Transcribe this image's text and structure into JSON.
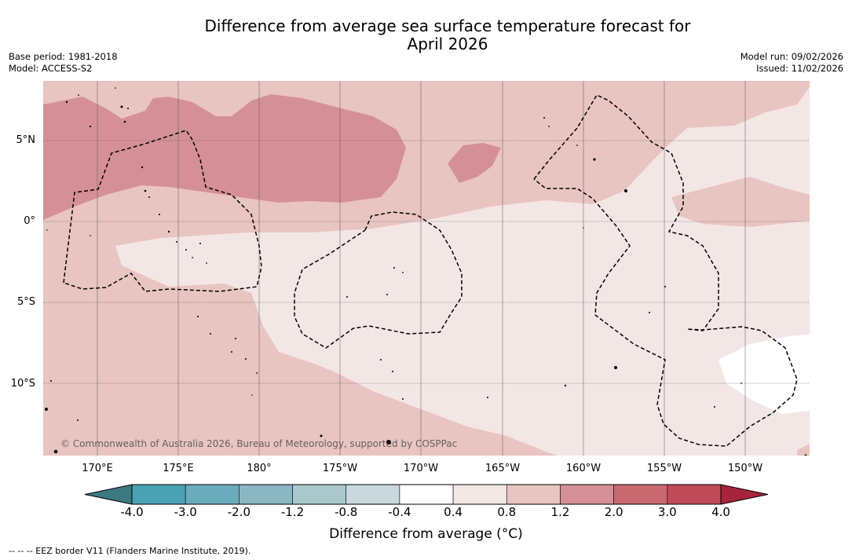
{
  "title_line1": "Difference from average sea surface temperature forecast for",
  "title_line2": "April 2026",
  "meta_left": {
    "base_period": "Base period: 1981-2018",
    "model": "Model: ACCESS-S2"
  },
  "meta_right": {
    "model_run": "Model run: 09/02/2026",
    "issued": "Issued: 11/02/2026"
  },
  "latitude_labels": [
    "5°N",
    "0°",
    "5°S",
    "10°S"
  ],
  "longitude_labels": [
    "170°E",
    "175°E",
    "180°",
    "175°W",
    "170°W",
    "165°W",
    "160°W",
    "155°W",
    "150°W"
  ],
  "copyright": "© Commonwealth of Australia 2026, Bureau of Meteorology, supported by COSPPac",
  "colorbar": {
    "title": "Difference from average (°C)",
    "ticks": [
      "-4.0",
      "-3.0",
      "-2.0",
      "-1.2",
      "-0.8",
      "-0.4",
      "0.4",
      "0.8",
      "1.2",
      "2.0",
      "3.0",
      "4.0"
    ],
    "colors": [
      "#4aa3b5",
      "#6aacbc",
      "#8bb7c2",
      "#a9c8cc",
      "#c8d8dc",
      "#ffffff",
      "#f3e7e5",
      "#e8c5c1",
      "#d59097",
      "#c9686f",
      "#bf4a58"
    ],
    "under_color": "#3a7a80",
    "over_color": "#a8243b"
  },
  "eez_legend": "--  --  -- EEZ border V11 (Flanders Marine Institute, 2019)."
}
